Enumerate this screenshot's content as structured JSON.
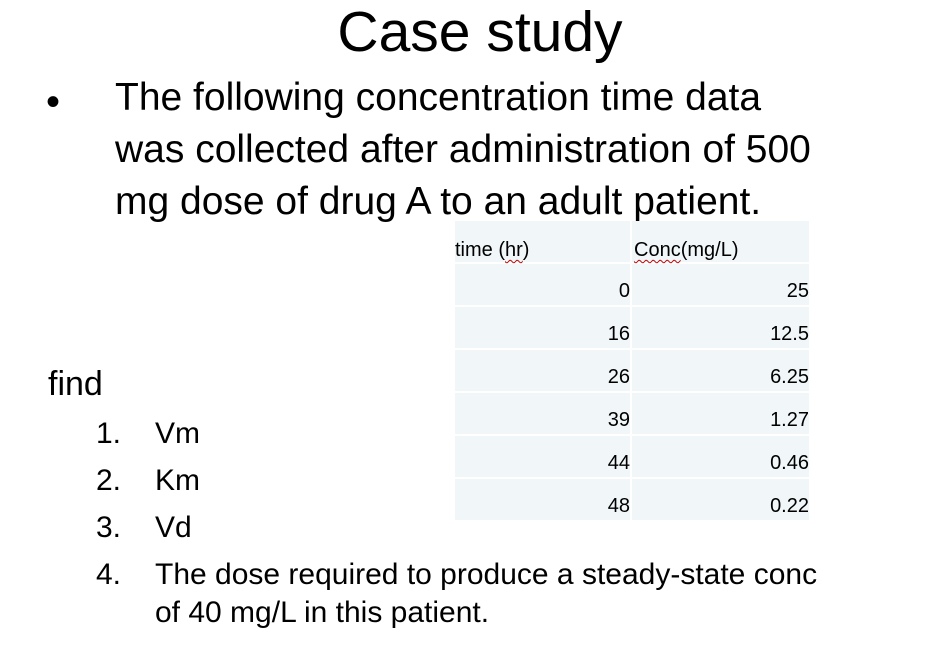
{
  "title": "Case study",
  "bullet": {
    "symbol": "•",
    "lines": [
      "The following concentration time data",
      "was collected after administration of 500",
      "mg dose of drug A to an adult patient."
    ]
  },
  "table": {
    "headers": {
      "time_prefix": "time (",
      "time_unit": "hr",
      "time_suffix": ")",
      "conc_word": "Conc",
      "conc_unit": "(mg/L)"
    },
    "rows": [
      {
        "time": "0",
        "conc": "25"
      },
      {
        "time": "16",
        "conc": "12.5"
      },
      {
        "time": "26",
        "conc": "6.25"
      },
      {
        "time": "39",
        "conc": "1.27"
      },
      {
        "time": "44",
        "conc": "0.46"
      },
      {
        "time": "48",
        "conc": "0.22"
      }
    ]
  },
  "find": {
    "label": "find",
    "items": [
      {
        "num": "1.",
        "text": "Vm"
      },
      {
        "num": "2.",
        "text": "Km"
      },
      {
        "num": "3.",
        "text": "Vd"
      },
      {
        "num": "4.",
        "line1": "The dose required to produce a steady-state conc",
        "line2": "of 40 mg/L in this patient."
      }
    ]
  }
}
